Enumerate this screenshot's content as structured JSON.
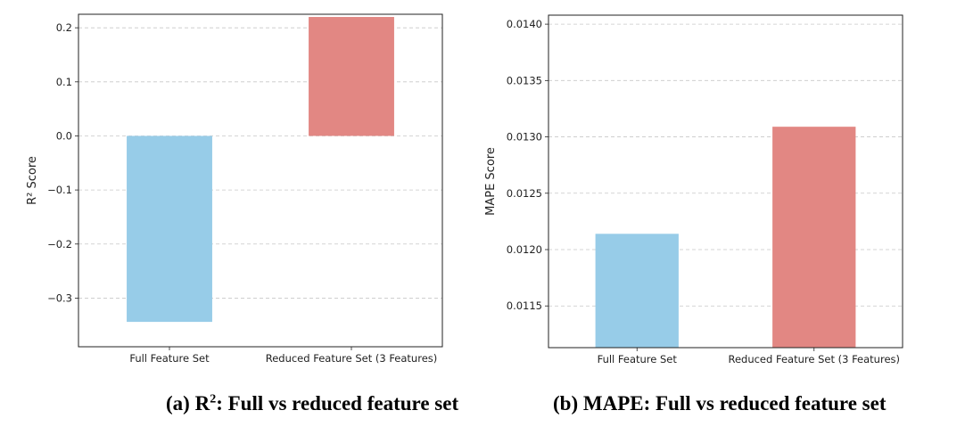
{
  "captions": {
    "a": {
      "label": "(a)",
      "main": "R",
      "sup": "2",
      "rest": ": Full vs reduced feature set"
    },
    "b": {
      "label": "(b)",
      "text": "MAPE: Full vs reduced feature set"
    }
  },
  "chart_data": [
    {
      "type": "bar",
      "categories": [
        "Full Feature Set",
        "Reduced Feature Set (3 Features)"
      ],
      "values": [
        -0.344,
        0.22
      ],
      "colors": [
        "#97cce8",
        "#e28783"
      ],
      "title": "",
      "xlabel": "",
      "ylabel": "R² Score",
      "ylim": [
        -0.39,
        0.225
      ],
      "yticks": [
        -0.3,
        -0.2,
        -0.1,
        0.0,
        0.1,
        0.2
      ],
      "yticklabels": [
        "−0.3",
        "−0.2",
        "−0.1",
        "0.0",
        "0.1",
        "0.2"
      ],
      "grid": "y-dashed"
    },
    {
      "type": "bar",
      "categories": [
        "Full Feature Set",
        "Reduced Feature Set (3 Features)"
      ],
      "values": [
        0.01214,
        0.01309
      ],
      "colors": [
        "#97cce8",
        "#e28783"
      ],
      "title": "",
      "xlabel": "",
      "ylabel": "MAPE Score",
      "ylim": [
        0.01113,
        0.01408
      ],
      "yticks": [
        0.0115,
        0.012,
        0.0125,
        0.013,
        0.0135,
        0.014
      ],
      "yticklabels": [
        "0.0115",
        "0.0120",
        "0.0125",
        "0.0130",
        "0.0135",
        "0.0140"
      ],
      "grid": "y-dashed"
    }
  ]
}
